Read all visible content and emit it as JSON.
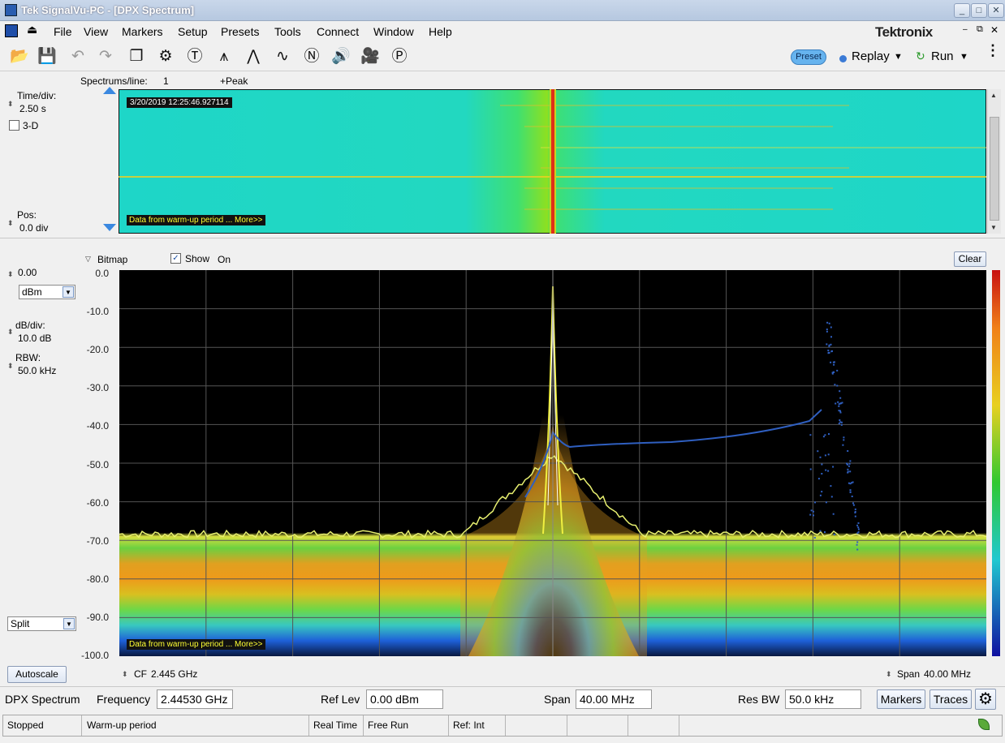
{
  "window": {
    "title": "Tek SignalVu-PC - [DPX Spectrum]"
  },
  "menu": [
    "File",
    "View",
    "Markers",
    "Setup",
    "Presets",
    "Tools",
    "Connect",
    "Window",
    "Help"
  ],
  "brand": "Tektronix",
  "toolbar": {
    "icons": [
      "open-icon",
      "save-icon",
      "undo-icon",
      "redo-icon",
      "windows-icon",
      "settings-icon",
      "title-icon",
      "markers-icon",
      "peak-icon",
      "trace-icon",
      "no-signal-icon",
      "audio-icon",
      "camera-icon",
      "presets-icon"
    ],
    "preset_label": "Preset",
    "replay_label": "Replay",
    "run_label": "Run"
  },
  "spectrogram": {
    "spectrums_label": "Spectrums/line:",
    "spectrums_value": "1",
    "peak_label": "+Peak",
    "time_div_label": "Time/div:",
    "time_div_value": "2.50 s",
    "three_d_label": "3-D",
    "pos_label": "Pos:",
    "pos_value": "0.0 div",
    "timestamp": "3/20/2019 12:25:46.927114",
    "warmup_text": "Data from warm-up period ... More>>"
  },
  "spectrum": {
    "bitmap_label": "Bitmap",
    "show_label": "Show",
    "on_label": "On",
    "clear_label": "Clear",
    "ref_value": "0.00",
    "unit": "dBm",
    "db_div_label": "dB/div:",
    "db_div_value": "10.0 dB",
    "rbw_label": "RBW:",
    "rbw_value": "50.0 kHz",
    "mode": "Split",
    "autoscale_label": "Autoscale",
    "y_ticks": [
      "0.0",
      "-10.0",
      "-20.0",
      "-30.0",
      "-40.0",
      "-50.0",
      "-60.0",
      "-70.0",
      "-80.0",
      "-90.0",
      "-100.0"
    ],
    "cf_label": "CF",
    "cf_value": "2.445 GHz",
    "span_label": "Span",
    "span_value": "40.00 MHz",
    "warmup_text": "Data from warm-up period ... More>>"
  },
  "controls": {
    "title": "DPX Spectrum",
    "frequency_label": "Frequency",
    "frequency_value": "2.44530 GHz",
    "ref_lev_label": "Ref Lev",
    "ref_lev_value": "0.00 dBm",
    "span_label": "Span",
    "span_value": "40.00 MHz",
    "res_bw_label": "Res BW",
    "res_bw_value": "50.0 kHz",
    "markers_label": "Markers",
    "traces_label": "Traces"
  },
  "status": {
    "state": "Stopped",
    "message": "Warm-up period",
    "mode": "Real Time",
    "trigger": "Free Run",
    "ref": "Ref: Int"
  },
  "colors": {
    "trace_blue": "#2f5fc0",
    "spectrogram_bg": "#1ed6c8",
    "plot_bg": "#000000",
    "accent": "#3b7bd6"
  }
}
